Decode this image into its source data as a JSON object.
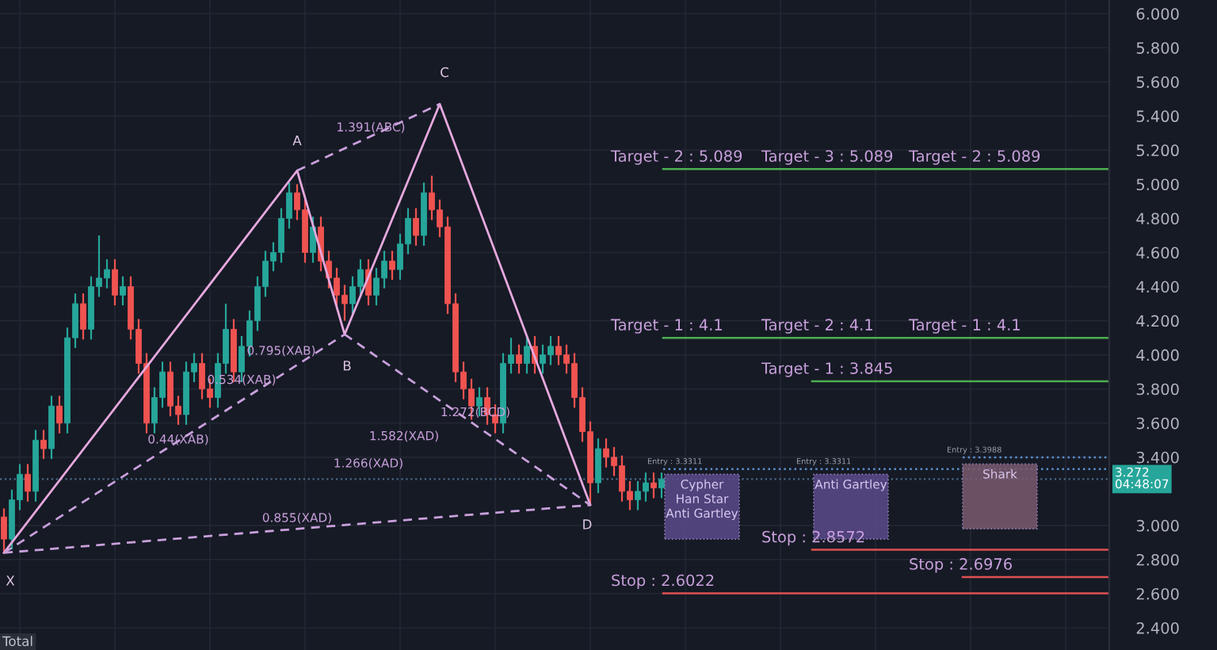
{
  "chart_data": {
    "type": "candlestick",
    "categories": [
      null,
      null,
      null,
      null,
      null,
      null,
      null,
      null,
      null,
      null,
      null,
      null,
      null,
      null,
      null,
      null,
      null,
      null,
      null,
      null,
      null,
      null,
      null,
      null,
      null,
      null,
      null,
      null,
      null,
      null,
      null,
      null,
      null,
      null,
      null,
      null,
      null,
      null,
      null,
      null,
      null,
      null,
      null,
      null,
      null,
      null,
      null,
      null,
      null,
      null,
      null,
      null,
      null,
      null,
      null,
      null,
      null,
      null,
      null,
      null,
      null,
      null,
      null,
      null,
      null,
      null,
      null,
      null,
      null,
      null,
      null,
      null,
      null,
      null,
      null,
      null,
      null,
      null,
      null,
      null,
      null,
      null,
      null,
      null,
      null,
      null,
      null,
      null,
      null,
      null,
      null,
      null,
      null,
      null,
      null,
      null,
      null,
      null,
      null,
      null,
      null,
      null,
      null,
      null,
      null,
      null,
      null,
      null,
      null,
      null,
      null,
      null,
      null,
      null,
      null,
      null,
      null,
      null,
      null,
      null,
      null,
      null,
      null,
      null,
      null,
      null,
      null,
      null,
      null,
      null,
      null,
      null,
      null,
      null,
      null,
      null,
      null,
      null,
      null,
      null
    ],
    "ohlc": [
      [
        3.05,
        3.1,
        2.84,
        2.92
      ],
      [
        2.92,
        3.21,
        2.86,
        3.15
      ],
      [
        3.15,
        3.36,
        3.09,
        3.3
      ],
      [
        3.3,
        3.36,
        3.14,
        3.2
      ],
      [
        3.2,
        3.56,
        3.14,
        3.5
      ],
      [
        3.5,
        3.56,
        3.39,
        3.45
      ],
      [
        3.45,
        3.76,
        3.39,
        3.7
      ],
      [
        3.7,
        3.76,
        3.54,
        3.6
      ],
      [
        3.6,
        4.16,
        3.54,
        4.1
      ],
      [
        4.1,
        4.36,
        4.04,
        4.3
      ],
      [
        4.3,
        4.36,
        4.09,
        4.15
      ],
      [
        4.15,
        4.46,
        4.09,
        4.4
      ],
      [
        4.4,
        4.7,
        4.34,
        4.45
      ],
      [
        4.45,
        4.56,
        4.39,
        4.5
      ],
      [
        4.5,
        4.56,
        4.29,
        4.35
      ],
      [
        4.35,
        4.46,
        4.29,
        4.4
      ],
      [
        4.4,
        4.46,
        4.09,
        4.15
      ],
      [
        4.15,
        4.21,
        3.89,
        3.95
      ],
      [
        3.95,
        4.01,
        3.54,
        3.6
      ],
      [
        3.6,
        3.81,
        3.54,
        3.75
      ],
      [
        3.75,
        3.96,
        3.69,
        3.9
      ],
      [
        3.9,
        3.96,
        3.64,
        3.7
      ],
      [
        3.7,
        3.76,
        3.59,
        3.65
      ],
      [
        3.65,
        3.96,
        3.59,
        3.9
      ],
      [
        3.9,
        4.01,
        3.84,
        3.95
      ],
      [
        3.95,
        4.01,
        3.74,
        3.8
      ],
      [
        3.8,
        3.86,
        3.69,
        3.75
      ],
      [
        3.75,
        4.01,
        3.69,
        3.95
      ],
      [
        3.95,
        4.3,
        3.89,
        4.15
      ],
      [
        4.15,
        4.21,
        3.84,
        3.9
      ],
      [
        3.9,
        4.11,
        3.84,
        4.05
      ],
      [
        4.05,
        4.26,
        3.99,
        4.2
      ],
      [
        4.2,
        4.46,
        4.14,
        4.4
      ],
      [
        4.4,
        4.61,
        4.34,
        4.55
      ],
      [
        4.55,
        4.66,
        4.49,
        4.6
      ],
      [
        4.6,
        4.86,
        4.54,
        4.8
      ],
      [
        4.8,
        5.01,
        4.74,
        4.95
      ],
      [
        4.95,
        5.0,
        4.79,
        4.85
      ],
      [
        4.85,
        4.91,
        4.54,
        4.6
      ],
      [
        4.6,
        4.81,
        4.54,
        4.75
      ],
      [
        4.75,
        4.81,
        4.49,
        4.55
      ],
      [
        4.55,
        4.61,
        4.39,
        4.45
      ],
      [
        4.45,
        4.51,
        4.29,
        4.35
      ],
      [
        4.35,
        4.41,
        4.2,
        4.3
      ],
      [
        4.3,
        4.46,
        4.24,
        4.4
      ],
      [
        4.4,
        4.56,
        4.34,
        4.5
      ],
      [
        4.5,
        4.56,
        4.29,
        4.35
      ],
      [
        4.35,
        4.51,
        4.29,
        4.45
      ],
      [
        4.45,
        4.61,
        4.39,
        4.55
      ],
      [
        4.55,
        4.61,
        4.44,
        4.5
      ],
      [
        4.5,
        4.71,
        4.44,
        4.65
      ],
      [
        4.65,
        4.86,
        4.59,
        4.8
      ],
      [
        4.8,
        4.86,
        4.64,
        4.7
      ],
      [
        4.7,
        5.01,
        4.64,
        4.95
      ],
      [
        4.95,
        5.05,
        4.79,
        4.85
      ],
      [
        4.85,
        4.91,
        4.69,
        4.75
      ],
      [
        4.75,
        4.81,
        4.24,
        4.3
      ],
      [
        4.3,
        4.36,
        3.84,
        3.9
      ],
      [
        3.9,
        3.96,
        3.74,
        3.8
      ],
      [
        3.8,
        3.86,
        3.62,
        3.7
      ],
      [
        3.7,
        3.81,
        3.64,
        3.75
      ],
      [
        3.75,
        3.81,
        3.59,
        3.65
      ],
      [
        3.65,
        3.71,
        3.54,
        3.6
      ],
      [
        3.6,
        4.01,
        3.54,
        3.95
      ],
      [
        3.95,
        4.1,
        3.89,
        4.0
      ],
      [
        4.0,
        4.06,
        3.89,
        3.95
      ],
      [
        3.95,
        4.11,
        3.89,
        4.05
      ],
      [
        4.05,
        4.11,
        3.89,
        3.95
      ],
      [
        3.95,
        4.06,
        3.89,
        4.0
      ],
      [
        4.0,
        4.11,
        3.94,
        4.05
      ],
      [
        4.05,
        4.11,
        3.94,
        4.0
      ],
      [
        4.0,
        4.06,
        3.89,
        3.95
      ],
      [
        3.95,
        4.01,
        3.69,
        3.75
      ],
      [
        3.75,
        3.81,
        3.49,
        3.55
      ],
      [
        3.55,
        3.61,
        3.12,
        3.25
      ],
      [
        3.25,
        3.51,
        3.19,
        3.45
      ],
      [
        3.45,
        3.51,
        3.34,
        3.4
      ],
      [
        3.4,
        3.46,
        3.29,
        3.35
      ],
      [
        3.35,
        3.41,
        3.14,
        3.2
      ],
      [
        3.2,
        3.26,
        3.09,
        3.15
      ],
      [
        3.15,
        3.26,
        3.09,
        3.2
      ],
      [
        3.2,
        3.31,
        3.14,
        3.25
      ],
      [
        3.25,
        3.31,
        3.16,
        3.22
      ],
      [
        3.22,
        3.31,
        3.16,
        3.27
      ],
      null,
      null,
      null,
      null,
      null,
      null,
      null,
      null,
      null,
      null,
      null,
      null,
      null,
      null,
      null,
      null,
      null,
      null,
      null,
      null,
      null,
      null,
      null,
      null,
      null,
      null,
      null,
      null,
      null,
      null,
      null,
      null,
      null,
      null,
      null,
      null,
      null,
      null,
      null,
      null,
      null,
      null,
      null,
      null,
      null,
      null,
      null,
      null,
      null,
      null,
      null,
      null,
      null,
      null,
      null,
      null
    ],
    "series": [
      {
        "type": "line",
        "color": "#e6a8de",
        "line_style": "solid",
        "values": [
          2.84,
          null,
          null,
          null,
          null,
          null,
          null,
          null,
          null,
          null,
          null,
          null,
          null,
          null,
          null,
          null,
          null,
          null,
          null,
          null,
          null,
          null,
          null,
          null,
          null,
          null,
          null,
          null,
          null,
          null,
          null,
          null,
          null,
          null,
          null,
          null,
          null,
          5.08,
          null,
          null,
          null,
          null,
          null,
          4.12,
          null,
          null,
          null,
          null,
          null,
          null,
          null,
          null,
          null,
          null,
          null,
          5.47,
          null,
          null,
          null,
          null,
          null,
          null,
          null,
          null,
          null,
          null,
          null,
          null,
          null,
          null,
          null,
          null,
          null,
          null,
          3.12,
          null,
          null,
          null,
          null,
          null,
          null,
          null,
          null,
          null,
          null,
          null,
          null,
          null,
          null,
          null,
          null,
          null,
          null,
          null,
          null,
          null,
          null,
          null,
          null,
          null,
          null,
          null,
          null,
          null,
          null,
          null,
          null,
          null,
          null,
          null,
          null,
          null,
          null,
          null,
          null,
          null,
          null,
          null,
          null,
          null,
          null,
          null,
          null,
          null,
          null,
          null,
          null,
          null,
          null,
          null,
          null,
          null,
          null,
          null,
          null,
          null,
          null,
          null,
          null,
          null
        ]
      },
      {
        "type": "line",
        "color": "#c9a0dc",
        "line_style": "dashed",
        "values": [
          2.84,
          null,
          null,
          null,
          null,
          null,
          null,
          null,
          null,
          null,
          null,
          null,
          null,
          null,
          null,
          null,
          null,
          null,
          null,
          null,
          null,
          null,
          null,
          null,
          null,
          null,
          null,
          null,
          null,
          null,
          null,
          null,
          null,
          null,
          null,
          null,
          null,
          null,
          null,
          null,
          null,
          null,
          null,
          4.12,
          null,
          null,
          null,
          null,
          null,
          null,
          null,
          null,
          null,
          null,
          null,
          null,
          null,
          null,
          null,
          null,
          null,
          null,
          null,
          null,
          null,
          null,
          null,
          null,
          null,
          null,
          null,
          null,
          null,
          null,
          null,
          null,
          null,
          null,
          null,
          null,
          null,
          null,
          null,
          null,
          null,
          null,
          null,
          null,
          null,
          null,
          null,
          null,
          null,
          null,
          null,
          null,
          null,
          null,
          null,
          null,
          null,
          null,
          null,
          null,
          null,
          null,
          null,
          null,
          null,
          null,
          null,
          null,
          null,
          null,
          null,
          null,
          null,
          null,
          null,
          null,
          null,
          null,
          null,
          null,
          null,
          null,
          null,
          null,
          null,
          null,
          null,
          null,
          null,
          null,
          null,
          null,
          null,
          null,
          null,
          null
        ]
      },
      {
        "type": "line",
        "color": "#c9a0dc",
        "line_style": "dashed",
        "values": [
          null,
          null,
          null,
          null,
          null,
          null,
          null,
          null,
          null,
          null,
          null,
          null,
          null,
          null,
          null,
          null,
          null,
          null,
          null,
          null,
          null,
          null,
          null,
          null,
          null,
          null,
          null,
          null,
          null,
          null,
          null,
          null,
          null,
          null,
          null,
          null,
          null,
          5.08,
          null,
          null,
          null,
          null,
          null,
          null,
          null,
          null,
          null,
          null,
          null,
          null,
          null,
          null,
          null,
          null,
          null,
          5.47,
          null,
          null,
          null,
          null,
          null,
          null,
          null,
          null,
          null,
          null,
          null,
          null,
          null,
          null,
          null,
          null,
          null,
          null,
          null,
          null,
          null,
          null,
          null,
          null,
          null,
          null,
          null,
          null,
          null,
          null,
          null,
          null,
          null,
          null,
          null,
          null,
          null,
          null,
          null,
          null,
          null,
          null,
          null,
          null,
          null,
          null,
          null,
          null,
          null,
          null,
          null,
          null,
          null,
          null,
          null,
          null,
          null,
          null,
          null,
          null,
          null,
          null,
          null,
          null,
          null,
          null,
          null,
          null,
          null,
          null,
          null,
          null,
          null,
          null,
          null,
          null,
          null,
          null,
          null,
          null,
          null,
          null,
          null,
          null
        ]
      },
      {
        "type": "line",
        "color": "#c9a0dc",
        "line_style": "dashed",
        "values": [
          null,
          null,
          null,
          null,
          null,
          null,
          null,
          null,
          null,
          null,
          null,
          null,
          null,
          null,
          null,
          null,
          null,
          null,
          null,
          null,
          null,
          null,
          null,
          null,
          null,
          null,
          null,
          null,
          null,
          null,
          null,
          null,
          null,
          null,
          null,
          null,
          null,
          null,
          null,
          null,
          null,
          null,
          null,
          4.12,
          null,
          null,
          null,
          null,
          null,
          null,
          null,
          null,
          null,
          null,
          null,
          null,
          null,
          null,
          null,
          null,
          null,
          null,
          null,
          null,
          null,
          null,
          null,
          null,
          null,
          null,
          null,
          null,
          null,
          null,
          3.12,
          null,
          null,
          null,
          null,
          null,
          null,
          null,
          null,
          null,
          null,
          null,
          null,
          null,
          null,
          null,
          null,
          null,
          null,
          null,
          null,
          null,
          null,
          null,
          null,
          null,
          null,
          null,
          null,
          null,
          null,
          null,
          null,
          null,
          null,
          null,
          null,
          null,
          null,
          null,
          null,
          null,
          null,
          null,
          null,
          null,
          null,
          null,
          null,
          null,
          null,
          null,
          null,
          null,
          null,
          null,
          null,
          null,
          null,
          null,
          null,
          null,
          null,
          null,
          null,
          null
        ]
      },
      {
        "type": "line",
        "color": "#c9a0dc",
        "line_style": "dashed",
        "values": [
          2.84,
          null,
          null,
          null,
          null,
          null,
          null,
          null,
          null,
          null,
          null,
          null,
          null,
          null,
          null,
          null,
          null,
          null,
          null,
          null,
          null,
          null,
          null,
          null,
          null,
          null,
          null,
          null,
          null,
          null,
          null,
          null,
          null,
          null,
          null,
          null,
          null,
          null,
          null,
          null,
          null,
          null,
          null,
          null,
          null,
          null,
          null,
          null,
          null,
          null,
          null,
          null,
          null,
          null,
          null,
          null,
          null,
          null,
          null,
          null,
          null,
          null,
          null,
          null,
          null,
          null,
          null,
          null,
          null,
          null,
          null,
          null,
          null,
          null,
          3.12,
          null,
          null,
          null,
          null,
          null,
          null,
          null,
          null,
          null,
          null,
          null,
          null,
          null,
          null,
          null,
          null,
          null,
          null,
          null,
          null,
          null,
          null,
          null,
          null,
          null,
          null,
          null,
          null,
          null,
          null,
          null,
          null,
          null,
          null,
          null,
          null,
          null,
          null,
          null,
          null,
          null,
          null,
          null,
          null,
          null,
          null,
          null,
          null,
          null,
          null,
          null,
          null,
          null,
          null,
          null,
          null,
          null,
          null,
          null,
          null,
          null,
          null,
          null,
          null,
          null
        ]
      }
    ],
    "ylim": [
      2.27,
      6.08
    ],
    "yticks": [
      {
        "value": 2.4,
        "label": "2.400"
      },
      {
        "value": 2.6,
        "label": "2.600"
      },
      {
        "value": 2.8,
        "label": "2.800"
      },
      {
        "value": 3.0,
        "label": "3.000"
      },
      {
        "value": 3.4,
        "label": "3.400"
      },
      {
        "value": 3.6,
        "label": "3.600"
      },
      {
        "value": 3.8,
        "label": "3.800"
      },
      {
        "value": 4.0,
        "label": "4.000"
      },
      {
        "value": 4.2,
        "label": "4.200"
      },
      {
        "value": 4.4,
        "label": "4.400"
      },
      {
        "value": 4.6,
        "label": "4.600"
      },
      {
        "value": 4.8,
        "label": "4.800"
      },
      {
        "value": 5.0,
        "label": "5.000"
      },
      {
        "value": 5.2,
        "label": "5.200"
      },
      {
        "value": 5.4,
        "label": "5.400"
      },
      {
        "value": 5.6,
        "label": "5.600"
      },
      {
        "value": 5.8,
        "label": "5.800"
      },
      {
        "value": 6.0,
        "label": "6.000"
      }
    ],
    "tick_labels": "y",
    "grid": true,
    "ref_lines": [
      {
        "axis": "y",
        "value": 5.089,
        "label": "Target - 2 : 5.089",
        "color": "#4caf50"
      },
      {
        "axis": "y",
        "value": 4.1,
        "label": "Target - 1 : 4.1",
        "color": "#4caf50"
      },
      {
        "axis": "y",
        "value": 3.845,
        "label": "Target - 1 : 3.845",
        "color": "#4caf50"
      },
      {
        "axis": "y",
        "value": 2.8572,
        "label": "Stop : 2.8572",
        "color": "#e05050"
      },
      {
        "axis": "y",
        "value": 2.6976,
        "label": "Stop : 2.6976",
        "color": "#e05050"
      },
      {
        "axis": "y",
        "value": 2.6022,
        "label": "Stop : 2.6022",
        "color": "#e05050"
      },
      {
        "axis": "y",
        "value": 3.3311,
        "label": "Entry : 3.3311",
        "color": "#5b8fd0",
        "line_style": "dotted"
      },
      {
        "axis": "y",
        "value": 3.3988,
        "label": "Entry : 3.3988",
        "color": "#5b8fd0",
        "line_style": "dotted"
      },
      {
        "axis": "y",
        "value": 3.272,
        "label": "3.272\n04:48:07",
        "color": "#4a6a8a",
        "line_style": "dotted"
      }
    ],
    "annotations": [
      "X",
      "A",
      "B",
      "C",
      "D",
      "1.391(ABC)",
      "0.795(XAB)",
      "0.534(XAB)",
      "0.44(XAB)",
      "1.582(XAD)",
      "1.266(XAD)",
      "0.855(XAD)",
      "1.272(BCD)",
      "Cypher\nHan Star\nAnti Gartley",
      "Anti Gartley",
      "Shark",
      "Total",
      {
        "text": "Target - 3 : 5.089",
        "y": 5.089
      },
      {
        "text": "Target - 2 : 5.089",
        "y": 5.089
      },
      {
        "text": "Target - 2 : 4.1",
        "y": 4.1
      },
      {
        "text": "Target - 1 : 4.1",
        "y": 4.1
      },
      {
        "text": "Entry : 3.3311",
        "y": 3.3311
      }
    ]
  }
}
